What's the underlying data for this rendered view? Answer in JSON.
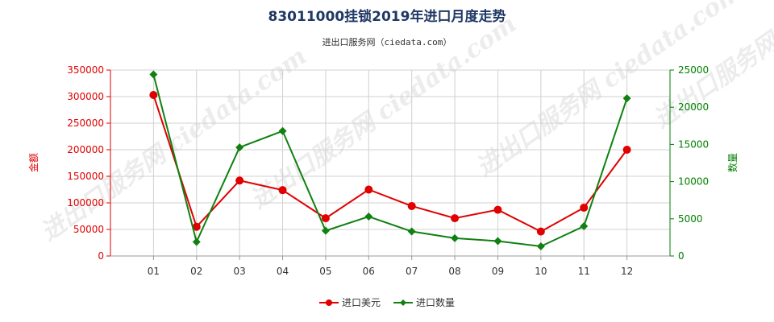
{
  "chart_data": {
    "type": "line",
    "title": "83011000挂锁2019年进口月度走势",
    "subtitle": "进出口服务网（ciedata.com）",
    "watermark": "进出口服务网 ciedata.com",
    "categories": [
      "01",
      "02",
      "03",
      "04",
      "05",
      "06",
      "07",
      "08",
      "09",
      "10",
      "11",
      "12"
    ],
    "y_left": {
      "label": "金额",
      "ylim": [
        0,
        350000
      ],
      "ticks": [
        "0",
        "50000",
        "100000",
        "150000",
        "200000",
        "250000",
        "300000",
        "350000"
      ],
      "color": "#e00000"
    },
    "y_right": {
      "label": "数量",
      "ylim": [
        0,
        25000
      ],
      "ticks": [
        "0",
        "5000",
        "10000",
        "15000",
        "20000",
        "25000"
      ],
      "color": "#008000"
    },
    "grid": true,
    "legend_position": "bottom-center",
    "series": [
      {
        "name": "进口美元",
        "axis": "left",
        "color": "#e00000",
        "marker": "circle",
        "values": [
          303000,
          55000,
          142000,
          124000,
          71000,
          125000,
          94000,
          71000,
          87000,
          46000,
          91000,
          200000
        ]
      },
      {
        "name": "进口数量",
        "axis": "right",
        "color": "#108010",
        "marker": "diamond",
        "values": [
          24400,
          1900,
          14600,
          16800,
          3400,
          5300,
          3300,
          2400,
          2000,
          1300,
          4000,
          21200
        ]
      }
    ]
  }
}
